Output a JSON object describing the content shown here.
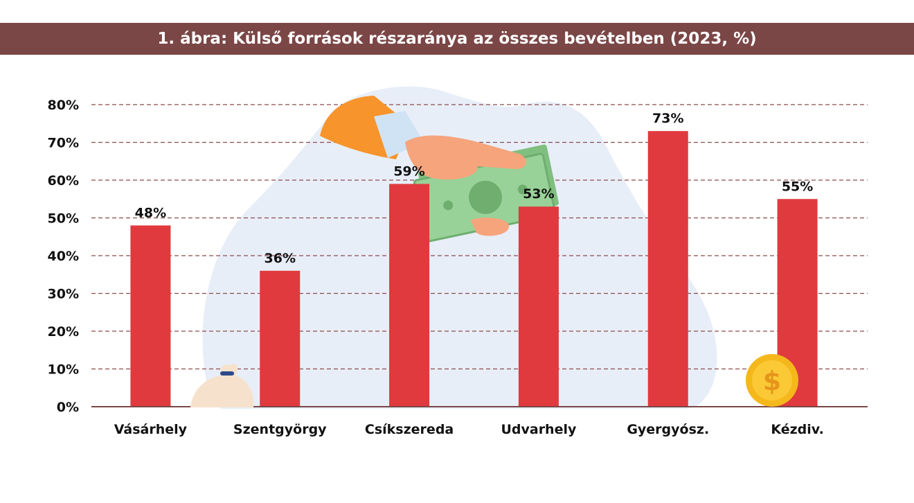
{
  "title": "1. ábra: Külső források részaránya az összes bevételben (2023, %)",
  "colors": {
    "bar": "#e03a3e",
    "title_bg": "#7b4646",
    "grid": "#8a4a4a",
    "axis": "#7b4646",
    "blob": "#e8eef8"
  },
  "chart_data": {
    "type": "bar",
    "title": "1. ábra: Külső források részaránya az összes bevételben (2023, %)",
    "categories": [
      "Vásárhely",
      "Szentgyörgy",
      "Csíkszereda",
      "Udvarhely",
      "Gyergyósz.",
      "Kézdiv."
    ],
    "values": [
      48,
      36,
      59,
      53,
      73,
      55
    ],
    "value_labels": [
      "48%",
      "36%",
      "59%",
      "53%",
      "73%",
      "55%"
    ],
    "ylim": [
      0,
      80
    ],
    "yticks": [
      0,
      10,
      20,
      30,
      40,
      50,
      60,
      70,
      80
    ],
    "ytick_labels": [
      "0%",
      "10%",
      "20%",
      "30%",
      "40%",
      "50%",
      "60%",
      "70%",
      "80%"
    ],
    "xlabel": "",
    "ylabel": "",
    "grid": true,
    "legend": "none"
  },
  "decorations": {
    "icons": [
      "hand-with-money-icon",
      "money-bag-icon",
      "dollar-coin-icon"
    ],
    "coin_symbol": "$"
  }
}
